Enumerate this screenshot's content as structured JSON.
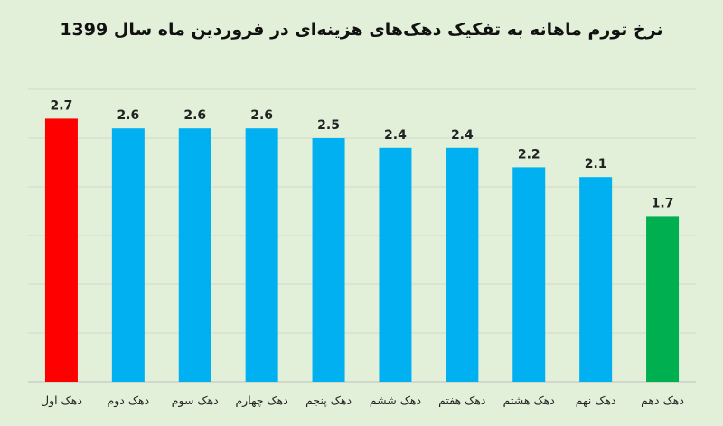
{
  "chart_data": {
    "type": "bar",
    "title": "نرخ تورم ماهانه به تفکیک دهک‌های هزینه‌ای در فروردین ماه سال 1399",
    "categories": [
      "دهک اول",
      "دهک دوم",
      "دهک سوم",
      "دهک چهارم",
      "دهک پنجم",
      "دهک ششم",
      "دهک هفتم",
      "دهک هشتم",
      "دهک نهم",
      "دهک دهم"
    ],
    "values": [
      2.7,
      2.6,
      2.6,
      2.6,
      2.5,
      2.4,
      2.4,
      2.2,
      2.1,
      1.7
    ],
    "bar_colors": [
      "#ff0000",
      "#00b0f0",
      "#00b0f0",
      "#00b0f0",
      "#00b0f0",
      "#00b0f0",
      "#00b0f0",
      "#00b0f0",
      "#00b0f0",
      "#00b050"
    ],
    "ylim": [
      0,
      3.0
    ],
    "grid": true,
    "xlabel": "",
    "ylabel": ""
  }
}
